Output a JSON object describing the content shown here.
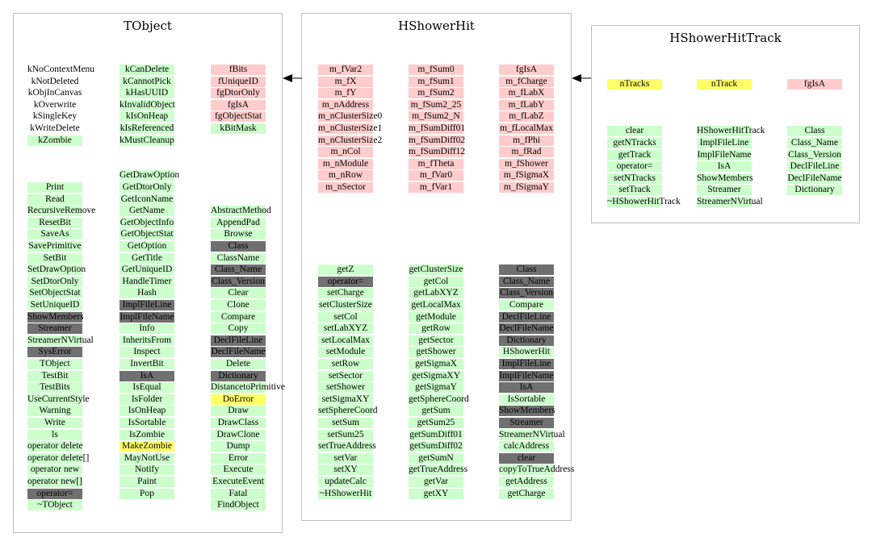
{
  "colors": {
    "green": "#ccffcc",
    "red": "#ffcccc",
    "yellow": "#ffff66",
    "dark": "#707070",
    "border": "#bdbdbd"
  },
  "panels": [
    {
      "title": "TObject",
      "cols": [
        {
          "cells": [
            {
              "t": "kNoContextMenu",
              "c": "w"
            },
            {
              "t": "kNotDeleted",
              "c": "w"
            },
            {
              "t": "kObjInCanvas",
              "c": "w"
            },
            {
              "t": "kOverwrite",
              "c": "w"
            },
            {
              "t": "kSingleKey",
              "c": "w"
            },
            {
              "t": "kWriteDelete",
              "c": "w"
            },
            {
              "t": "kZombie",
              "c": "g"
            },
            {
              "t": "Print",
              "c": "g"
            },
            {
              "t": "Read",
              "c": "g"
            },
            {
              "t": "RecursiveRemove",
              "c": "g"
            },
            {
              "t": "ResetBit",
              "c": "g"
            },
            {
              "t": "SaveAs",
              "c": "g"
            },
            {
              "t": "SavePrimitive",
              "c": "g"
            },
            {
              "t": "SetBit",
              "c": "g"
            },
            {
              "t": "SetDrawOption",
              "c": "g"
            },
            {
              "t": "SetDtorOnly",
              "c": "g"
            },
            {
              "t": "SetObjectStat",
              "c": "g"
            },
            {
              "t": "SetUniqueID",
              "c": "g"
            },
            {
              "t": "ShowMembers",
              "c": "d"
            },
            {
              "t": "Streamer",
              "c": "d"
            },
            {
              "t": "StreamerNVirtual",
              "c": "g"
            },
            {
              "t": "SysError",
              "c": "d"
            },
            {
              "t": "TObject",
              "c": "g"
            },
            {
              "t": "TestBit",
              "c": "g"
            },
            {
              "t": "TestBits",
              "c": "g"
            },
            {
              "t": "UseCurrentStyle",
              "c": "g"
            },
            {
              "t": "Warning",
              "c": "g"
            },
            {
              "t": "Write",
              "c": "g"
            },
            {
              "t": "ls",
              "c": "g"
            },
            {
              "t": "operator delete",
              "c": "g"
            },
            {
              "t": "operator delete[]",
              "c": "g"
            },
            {
              "t": "operator new",
              "c": "g"
            },
            {
              "t": "operator new[]",
              "c": "g"
            },
            {
              "t": "operator=",
              "c": "d"
            },
            {
              "t": "~TObject",
              "c": "g"
            }
          ]
        },
        {
          "cells": [
            {
              "t": "kCanDelete",
              "c": "g"
            },
            {
              "t": "kCannotPick",
              "c": "g"
            },
            {
              "t": "kHasUUID",
              "c": "g"
            },
            {
              "t": "kInvalidObject",
              "c": "g"
            },
            {
              "t": "kIsOnHeap",
              "c": "g"
            },
            {
              "t": "kIsReferenced",
              "c": "g"
            },
            {
              "t": "kMustCleanup",
              "c": "g"
            },
            {
              "t": "GetDrawOption",
              "c": "g"
            },
            {
              "t": "GetDtorOnly",
              "c": "g"
            },
            {
              "t": "GetIconName",
              "c": "g"
            },
            {
              "t": "GetName",
              "c": "g"
            },
            {
              "t": "GetObjectInfo",
              "c": "g"
            },
            {
              "t": "GetObjectStat",
              "c": "g"
            },
            {
              "t": "GetOption",
              "c": "g"
            },
            {
              "t": "GetTitle",
              "c": "g"
            },
            {
              "t": "GetUniqueID",
              "c": "g"
            },
            {
              "t": "HandleTimer",
              "c": "g"
            },
            {
              "t": "Hash",
              "c": "g"
            },
            {
              "t": "ImplFileLine",
              "c": "d"
            },
            {
              "t": "ImplFileName",
              "c": "d"
            },
            {
              "t": "Info",
              "c": "g"
            },
            {
              "t": "InheritsFrom",
              "c": "g"
            },
            {
              "t": "Inspect",
              "c": "g"
            },
            {
              "t": "InvertBit",
              "c": "g"
            },
            {
              "t": "IsA",
              "c": "d"
            },
            {
              "t": "IsEqual",
              "c": "g"
            },
            {
              "t": "IsFolder",
              "c": "g"
            },
            {
              "t": "IsOnHeap",
              "c": "g"
            },
            {
              "t": "IsSortable",
              "c": "g"
            },
            {
              "t": "IsZombie",
              "c": "g"
            },
            {
              "t": "MakeZombie",
              "c": "y"
            },
            {
              "t": "MayNotUse",
              "c": "g"
            },
            {
              "t": "Notify",
              "c": "g"
            },
            {
              "t": "Paint",
              "c": "g"
            },
            {
              "t": "Pop",
              "c": "g"
            }
          ]
        },
        {
          "cells": [
            {
              "t": "fBits",
              "c": "r"
            },
            {
              "t": "fUniqueID",
              "c": "r"
            },
            {
              "t": "fgDtorOnly",
              "c": "r"
            },
            {
              "t": "fgIsA",
              "c": "r"
            },
            {
              "t": "fgObjectStat",
              "c": "r"
            },
            {
              "t": "kBitMask",
              "c": "g"
            },
            {
              "t": "AbstractMethod",
              "c": "g"
            },
            {
              "t": "AppendPad",
              "c": "g"
            },
            {
              "t": "Browse",
              "c": "g"
            },
            {
              "t": "Class",
              "c": "d"
            },
            {
              "t": "ClassName",
              "c": "g"
            },
            {
              "t": "Class_Name",
              "c": "d"
            },
            {
              "t": "Class_Version",
              "c": "d"
            },
            {
              "t": "Clear",
              "c": "g"
            },
            {
              "t": "Clone",
              "c": "g"
            },
            {
              "t": "Compare",
              "c": "g"
            },
            {
              "t": "Copy",
              "c": "g"
            },
            {
              "t": "DeclFileLine",
              "c": "d"
            },
            {
              "t": "DeclFileName",
              "c": "d"
            },
            {
              "t": "Delete",
              "c": "g"
            },
            {
              "t": "Dictionary",
              "c": "d"
            },
            {
              "t": "DistancetoPrimitive",
              "c": "g"
            },
            {
              "t": "DoError",
              "c": "y"
            },
            {
              "t": "Draw",
              "c": "g"
            },
            {
              "t": "DrawClass",
              "c": "g"
            },
            {
              "t": "DrawClone",
              "c": "g"
            },
            {
              "t": "Dump",
              "c": "g"
            },
            {
              "t": "Error",
              "c": "g"
            },
            {
              "t": "Execute",
              "c": "g"
            },
            {
              "t": "ExecuteEvent",
              "c": "g"
            },
            {
              "t": "Fatal",
              "c": "g"
            },
            {
              "t": "FindObject",
              "c": "g"
            }
          ]
        }
      ]
    },
    {
      "title": "HShowerHit",
      "cols": [
        {
          "cells": [
            {
              "t": "m_fVar2",
              "c": "r"
            },
            {
              "t": "m_fX",
              "c": "r"
            },
            {
              "t": "m_fY",
              "c": "r"
            },
            {
              "t": "m_nAddress",
              "c": "r"
            },
            {
              "t": "m_nClusterSize0",
              "c": "r"
            },
            {
              "t": "m_nClusterSize1",
              "c": "r"
            },
            {
              "t": "m_nClusterSize2",
              "c": "r"
            },
            {
              "t": "m_nCol",
              "c": "r"
            },
            {
              "t": "m_nModule",
              "c": "r"
            },
            {
              "t": "m_nRow",
              "c": "r"
            },
            {
              "t": "m_nSector",
              "c": "r"
            },
            {
              "t": "getZ",
              "c": "g"
            },
            {
              "t": "operator=",
              "c": "d"
            },
            {
              "t": "setCharge",
              "c": "g"
            },
            {
              "t": "setClusterSize",
              "c": "g"
            },
            {
              "t": "setCol",
              "c": "g"
            },
            {
              "t": "setLabXYZ",
              "c": "g"
            },
            {
              "t": "setLocalMax",
              "c": "g"
            },
            {
              "t": "setModule",
              "c": "g"
            },
            {
              "t": "setRow",
              "c": "g"
            },
            {
              "t": "setSector",
              "c": "g"
            },
            {
              "t": "setShower",
              "c": "g"
            },
            {
              "t": "setSigmaXY",
              "c": "g"
            },
            {
              "t": "setSphereCoord",
              "c": "g"
            },
            {
              "t": "setSum",
              "c": "g"
            },
            {
              "t": "setSum25",
              "c": "g"
            },
            {
              "t": "setTrueAddress",
              "c": "g"
            },
            {
              "t": "setVar",
              "c": "g"
            },
            {
              "t": "setXY",
              "c": "g"
            },
            {
              "t": "updateCalc",
              "c": "g"
            },
            {
              "t": "~HShowerHit",
              "c": "g"
            }
          ]
        },
        {
          "cells": [
            {
              "t": "m_fSum0",
              "c": "r"
            },
            {
              "t": "m_fSum1",
              "c": "r"
            },
            {
              "t": "m_fSum2",
              "c": "r"
            },
            {
              "t": "m_fSum2_25",
              "c": "r"
            },
            {
              "t": "m_fSum2_N",
              "c": "r"
            },
            {
              "t": "m_fSumDiff01",
              "c": "r"
            },
            {
              "t": "m_fSumDiff02",
              "c": "r"
            },
            {
              "t": "m_fSumDiff12",
              "c": "r"
            },
            {
              "t": "m_fTheta",
              "c": "r"
            },
            {
              "t": "m_fVar0",
              "c": "r"
            },
            {
              "t": "m_fVar1",
              "c": "r"
            },
            {
              "t": "getClusterSize",
              "c": "g"
            },
            {
              "t": "getCol",
              "c": "g"
            },
            {
              "t": "getLabXYZ",
              "c": "g"
            },
            {
              "t": "getLocalMax",
              "c": "g"
            },
            {
              "t": "getModule",
              "c": "g"
            },
            {
              "t": "getRow",
              "c": "g"
            },
            {
              "t": "getSector",
              "c": "g"
            },
            {
              "t": "getShower",
              "c": "g"
            },
            {
              "t": "getSigmaX",
              "c": "g"
            },
            {
              "t": "getSigmaXY",
              "c": "g"
            },
            {
              "t": "getSigmaY",
              "c": "g"
            },
            {
              "t": "getSphereCoord",
              "c": "g"
            },
            {
              "t": "getSum",
              "c": "g"
            },
            {
              "t": "getSum25",
              "c": "g"
            },
            {
              "t": "getSumDiff01",
              "c": "g"
            },
            {
              "t": "getSumDiff02",
              "c": "g"
            },
            {
              "t": "getSumN",
              "c": "g"
            },
            {
              "t": "getTrueAddress",
              "c": "g"
            },
            {
              "t": "getVar",
              "c": "g"
            },
            {
              "t": "getXY",
              "c": "g"
            }
          ]
        },
        {
          "cells": [
            {
              "t": "fgIsA",
              "c": "r"
            },
            {
              "t": "m_fCharge",
              "c": "r"
            },
            {
              "t": "m_fLabX",
              "c": "r"
            },
            {
              "t": "m_fLabY",
              "c": "r"
            },
            {
              "t": "m_fLabZ",
              "c": "r"
            },
            {
              "t": "m_fLocalMax",
              "c": "r"
            },
            {
              "t": "m_fPhi",
              "c": "r"
            },
            {
              "t": "m_fRad",
              "c": "r"
            },
            {
              "t": "m_fShower",
              "c": "r"
            },
            {
              "t": "m_fSigmaX",
              "c": "r"
            },
            {
              "t": "m_fSigmaY",
              "c": "r"
            },
            {
              "t": "Class",
              "c": "d"
            },
            {
              "t": "Class_Name",
              "c": "d"
            },
            {
              "t": "Class_Version",
              "c": "d"
            },
            {
              "t": "Compare",
              "c": "g"
            },
            {
              "t": "DeclFileLine",
              "c": "d"
            },
            {
              "t": "DeclFileName",
              "c": "d"
            },
            {
              "t": "Dictionary",
              "c": "d"
            },
            {
              "t": "HShowerHit",
              "c": "g"
            },
            {
              "t": "ImplFileLine",
              "c": "d"
            },
            {
              "t": "ImplFileName",
              "c": "d"
            },
            {
              "t": "IsA",
              "c": "d"
            },
            {
              "t": "IsSortable",
              "c": "g"
            },
            {
              "t": "ShowMembers",
              "c": "d"
            },
            {
              "t": "Streamer",
              "c": "d"
            },
            {
              "t": "StreamerNVirtual",
              "c": "g"
            },
            {
              "t": "calcAddress",
              "c": "g"
            },
            {
              "t": "clear",
              "c": "d"
            },
            {
              "t": "copyToTrueAddress",
              "c": "g"
            },
            {
              "t": "getAddress",
              "c": "g"
            },
            {
              "t": "getCharge",
              "c": "g"
            }
          ]
        }
      ]
    },
    {
      "title": "HShowerHitTrack",
      "cols": [
        {
          "cells": [
            {
              "t": "nTracks",
              "c": "y"
            },
            {
              "t": "clear",
              "c": "g"
            },
            {
              "t": "getNTracks",
              "c": "g"
            },
            {
              "t": "getTrack",
              "c": "g"
            },
            {
              "t": "operator=",
              "c": "g"
            },
            {
              "t": "setNTracks",
              "c": "g"
            },
            {
              "t": "setTrack",
              "c": "g"
            },
            {
              "t": "~HShowerHitTrack",
              "c": "g"
            }
          ]
        },
        {
          "cells": [
            {
              "t": "nTrack",
              "c": "y"
            },
            {
              "t": "HShowerHitTrack",
              "c": "g"
            },
            {
              "t": "ImplFileLine",
              "c": "g"
            },
            {
              "t": "ImplFileName",
              "c": "g"
            },
            {
              "t": "IsA",
              "c": "g"
            },
            {
              "t": "ShowMembers",
              "c": "g"
            },
            {
              "t": "Streamer",
              "c": "g"
            },
            {
              "t": "StreamerNVirtual",
              "c": "g"
            }
          ]
        },
        {
          "cells": [
            {
              "t": "fgIsA",
              "c": "r"
            },
            {
              "t": "Class",
              "c": "g"
            },
            {
              "t": "Class_Name",
              "c": "g"
            },
            {
              "t": "Class_Version",
              "c": "g"
            },
            {
              "t": "DeclFileLine",
              "c": "g"
            },
            {
              "t": "DeclFileName",
              "c": "g"
            },
            {
              "t": "Dictionary",
              "c": "g"
            }
          ]
        }
      ]
    }
  ]
}
